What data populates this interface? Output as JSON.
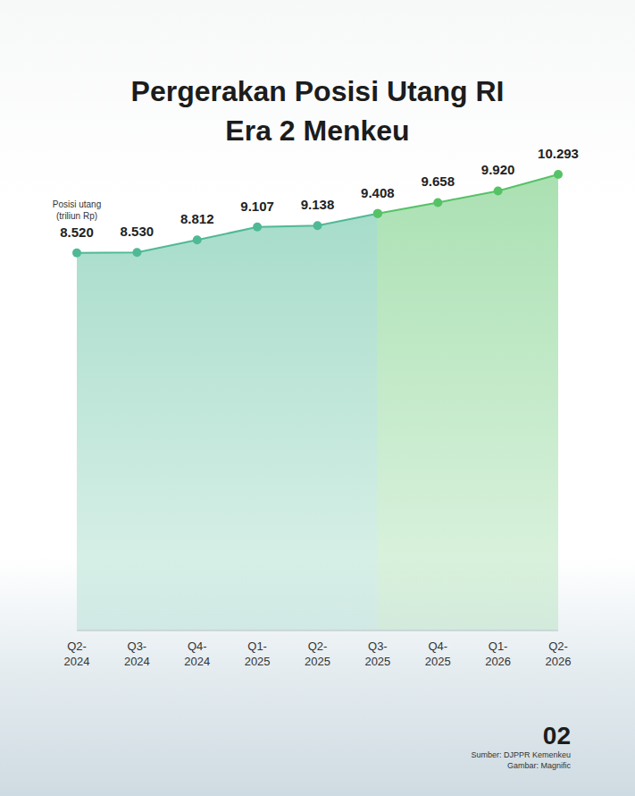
{
  "chart_data": {
    "type": "area",
    "title": "Pergerakan Posisi Utang RI\nEra 2 Menkeu",
    "y_label": "Posisi utang (triliun Rp)",
    "categories": [
      "Q2-2024",
      "Q3-2024",
      "Q4-2024",
      "Q1-2025",
      "Q2-2025",
      "Q3-2025",
      "Q4-2025",
      "Q1-2026",
      "Q2-2026"
    ],
    "series": [
      {
        "color": "#4fb996",
        "values": [
          8520,
          8530,
          8812,
          9107,
          9138,
          9408,
          null,
          null,
          null
        ],
        "value_labels": [
          "8.520",
          "8.530",
          "8.812",
          "9.107",
          "9.138",
          "9.408",
          null,
          null,
          null
        ]
      },
      {
        "color": "#56c266",
        "values": [
          null,
          null,
          null,
          null,
          null,
          9408,
          9658,
          9920,
          10293
        ],
        "value_labels": [
          null,
          null,
          null,
          null,
          null,
          "9.408",
          "9.658",
          "9.920",
          "10.293"
        ]
      }
    ],
    "ylim": [
      0,
      11200
    ],
    "tick_labels": "x",
    "data_labels": true,
    "grid": false,
    "page_number": "02",
    "source": "Sumber: DJPPR Kemenkeu",
    "image_credit": "Gambar: Magnific"
  }
}
